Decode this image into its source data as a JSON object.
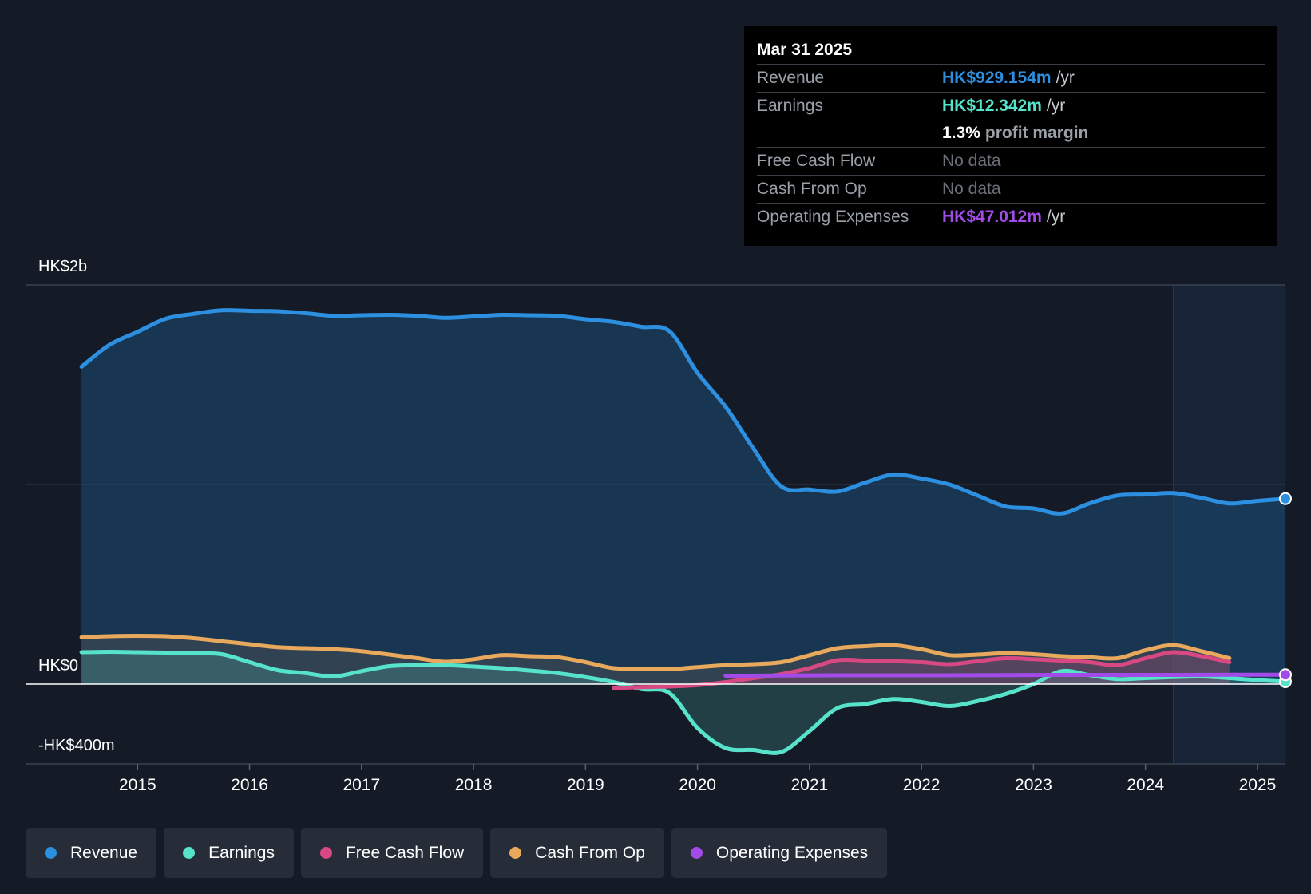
{
  "chart_data": {
    "type": "area",
    "y_axis_labels": {
      "top": "HK$2b",
      "zero": "HK$0",
      "bottom": "-HK$400m"
    },
    "ylim": [
      -400,
      2000
    ],
    "y_unit": "HK$m",
    "xlim": [
      2014.0,
      2025.25
    ],
    "x_ticks": [
      "2015",
      "2016",
      "2017",
      "2018",
      "2019",
      "2020",
      "2021",
      "2022",
      "2023",
      "2024",
      "2025"
    ],
    "x_tick_values": [
      2015,
      2016,
      2017,
      2018,
      2019,
      2020,
      2021,
      2022,
      2023,
      2024,
      2025
    ],
    "forecast_start": 2024.25,
    "series": [
      {
        "name": "Revenue",
        "color": "#2d8fe0",
        "points": [
          [
            2014.5,
            1590
          ],
          [
            2014.75,
            1700
          ],
          [
            2015.0,
            1765
          ],
          [
            2015.25,
            1830
          ],
          [
            2015.5,
            1855
          ],
          [
            2015.75,
            1873
          ],
          [
            2016.0,
            1870
          ],
          [
            2016.25,
            1868
          ],
          [
            2016.5,
            1858
          ],
          [
            2016.75,
            1845
          ],
          [
            2017.0,
            1848
          ],
          [
            2017.25,
            1850
          ],
          [
            2017.5,
            1845
          ],
          [
            2017.75,
            1835
          ],
          [
            2018.0,
            1842
          ],
          [
            2018.25,
            1850
          ],
          [
            2018.5,
            1848
          ],
          [
            2018.75,
            1845
          ],
          [
            2019.0,
            1828
          ],
          [
            2019.25,
            1815
          ],
          [
            2019.5,
            1790
          ],
          [
            2019.75,
            1768
          ],
          [
            2020.0,
            1560
          ],
          [
            2020.25,
            1390
          ],
          [
            2020.5,
            1180
          ],
          [
            2020.75,
            990
          ],
          [
            2021.0,
            975
          ],
          [
            2021.25,
            965
          ],
          [
            2021.5,
            1010
          ],
          [
            2021.75,
            1050
          ],
          [
            2022.0,
            1030
          ],
          [
            2022.25,
            1000
          ],
          [
            2022.5,
            945
          ],
          [
            2022.75,
            890
          ],
          [
            2023.0,
            880
          ],
          [
            2023.25,
            855
          ],
          [
            2023.5,
            905
          ],
          [
            2023.75,
            945
          ],
          [
            2024.0,
            950
          ],
          [
            2024.25,
            957
          ],
          [
            2024.5,
            933
          ],
          [
            2024.75,
            905
          ],
          [
            2025.0,
            918
          ],
          [
            2025.25,
            929
          ]
        ]
      },
      {
        "name": "Earnings",
        "color": "#57e3cb",
        "points": [
          [
            2014.5,
            160
          ],
          [
            2014.75,
            162
          ],
          [
            2015.0,
            160
          ],
          [
            2015.25,
            158
          ],
          [
            2015.5,
            155
          ],
          [
            2015.75,
            150
          ],
          [
            2016.0,
            110
          ],
          [
            2016.25,
            70
          ],
          [
            2016.5,
            55
          ],
          [
            2016.75,
            38
          ],
          [
            2017.0,
            65
          ],
          [
            2017.25,
            90
          ],
          [
            2017.5,
            95
          ],
          [
            2017.75,
            95
          ],
          [
            2018.0,
            88
          ],
          [
            2018.25,
            80
          ],
          [
            2018.5,
            68
          ],
          [
            2018.75,
            55
          ],
          [
            2019.0,
            35
          ],
          [
            2019.25,
            10
          ],
          [
            2019.5,
            -25
          ],
          [
            2019.75,
            -45
          ],
          [
            2020.0,
            -220
          ],
          [
            2020.25,
            -320
          ],
          [
            2020.5,
            -330
          ],
          [
            2020.75,
            -340
          ],
          [
            2021.0,
            -235
          ],
          [
            2021.25,
            -120
          ],
          [
            2021.5,
            -100
          ],
          [
            2021.75,
            -75
          ],
          [
            2022.0,
            -90
          ],
          [
            2022.25,
            -110
          ],
          [
            2022.5,
            -85
          ],
          [
            2022.75,
            -50
          ],
          [
            2023.0,
            0
          ],
          [
            2023.25,
            65
          ],
          [
            2023.5,
            45
          ],
          [
            2023.75,
            25
          ],
          [
            2024.0,
            30
          ],
          [
            2024.25,
            35
          ],
          [
            2024.5,
            38
          ],
          [
            2024.75,
            30
          ],
          [
            2025.0,
            20
          ],
          [
            2025.25,
            12.342
          ]
        ]
      },
      {
        "name": "Free Cash Flow",
        "color": "#d84883",
        "points": [
          [
            2019.25,
            -20
          ],
          [
            2019.5,
            -15
          ],
          [
            2019.75,
            -12
          ],
          [
            2020.0,
            -5
          ],
          [
            2020.25,
            10
          ],
          [
            2020.5,
            30
          ],
          [
            2020.75,
            50
          ],
          [
            2021.0,
            80
          ],
          [
            2021.25,
            120
          ],
          [
            2021.5,
            118
          ],
          [
            2021.75,
            115
          ],
          [
            2022.0,
            110
          ],
          [
            2022.25,
            100
          ],
          [
            2022.5,
            115
          ],
          [
            2022.75,
            130
          ],
          [
            2023.0,
            125
          ],
          [
            2023.25,
            118
          ],
          [
            2023.5,
            110
          ],
          [
            2023.75,
            95
          ],
          [
            2024.0,
            130
          ],
          [
            2024.25,
            160
          ],
          [
            2024.5,
            140
          ],
          [
            2024.75,
            110
          ]
        ]
      },
      {
        "name": "Cash From Op",
        "color": "#e8a95c",
        "points": [
          [
            2014.5,
            235
          ],
          [
            2014.75,
            240
          ],
          [
            2015.0,
            242
          ],
          [
            2015.25,
            240
          ],
          [
            2015.5,
            230
          ],
          [
            2015.75,
            215
          ],
          [
            2016.0,
            200
          ],
          [
            2016.25,
            185
          ],
          [
            2016.5,
            180
          ],
          [
            2016.75,
            175
          ],
          [
            2017.0,
            165
          ],
          [
            2017.25,
            148
          ],
          [
            2017.5,
            130
          ],
          [
            2017.75,
            112
          ],
          [
            2018.0,
            125
          ],
          [
            2018.25,
            145
          ],
          [
            2018.5,
            140
          ],
          [
            2018.75,
            135
          ],
          [
            2019.0,
            110
          ],
          [
            2019.25,
            80
          ],
          [
            2019.5,
            78
          ],
          [
            2019.75,
            75
          ],
          [
            2020.0,
            85
          ],
          [
            2020.25,
            95
          ],
          [
            2020.5,
            100
          ],
          [
            2020.75,
            110
          ],
          [
            2021.0,
            145
          ],
          [
            2021.25,
            180
          ],
          [
            2021.5,
            190
          ],
          [
            2021.75,
            195
          ],
          [
            2022.0,
            175
          ],
          [
            2022.25,
            145
          ],
          [
            2022.5,
            148
          ],
          [
            2022.75,
            155
          ],
          [
            2023.0,
            150
          ],
          [
            2023.25,
            140
          ],
          [
            2023.5,
            135
          ],
          [
            2023.75,
            130
          ],
          [
            2024.0,
            170
          ],
          [
            2024.25,
            195
          ],
          [
            2024.5,
            165
          ],
          [
            2024.75,
            130
          ]
        ]
      },
      {
        "name": "Operating Expenses",
        "color": "#a34be8",
        "points": [
          [
            2020.25,
            42
          ],
          [
            2020.75,
            43
          ],
          [
            2021.25,
            44
          ],
          [
            2021.75,
            44
          ],
          [
            2022.25,
            44
          ],
          [
            2022.75,
            45
          ],
          [
            2023.25,
            46
          ],
          [
            2023.75,
            46
          ],
          [
            2024.25,
            46
          ],
          [
            2024.75,
            47
          ],
          [
            2025.25,
            47.012
          ]
        ]
      }
    ]
  },
  "tooltip": {
    "date": "Mar 31 2025",
    "rows": [
      {
        "label": "Revenue",
        "value": "HK$929.154m",
        "unit": "/yr"
      },
      {
        "label": "Earnings",
        "value": "HK$12.342m",
        "unit": "/yr"
      },
      {
        "pct": "1.3%",
        "text": "profit margin"
      },
      {
        "label": "Free Cash Flow",
        "value": "No data"
      },
      {
        "label": "Cash From Op",
        "value": "No data"
      },
      {
        "label": "Operating Expenses",
        "value": "HK$47.012m",
        "unit": "/yr"
      }
    ]
  },
  "legend": [
    {
      "label": "Revenue",
      "color": "#2d8fe0"
    },
    {
      "label": "Earnings",
      "color": "#57e3cb"
    },
    {
      "label": "Free Cash Flow",
      "color": "#d84883"
    },
    {
      "label": "Cash From Op",
      "color": "#e8a95c"
    },
    {
      "label": "Operating Expenses",
      "color": "#a34be8"
    }
  ]
}
